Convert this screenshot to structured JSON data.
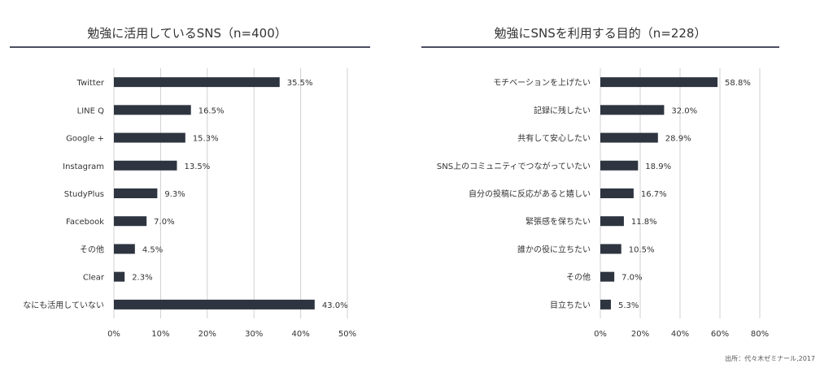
{
  "colors": {
    "bar": "#2e3540",
    "grid": "#d0d0d0",
    "rule": "#4b5060",
    "text": "#333333"
  },
  "source": "出所：代々木ゼミナール,2017",
  "chart_data": [
    {
      "type": "bar",
      "orientation": "horizontal",
      "title": "勉強に活用しているSNS（n=400）",
      "categories": [
        "Twitter",
        "LINE Q",
        "Google +",
        "Instagram",
        "StudyPlus",
        "Facebook",
        "その他",
        "Clear",
        "なにも活用していない"
      ],
      "values": [
        35.5,
        16.5,
        15.3,
        13.5,
        9.3,
        7.0,
        4.5,
        2.3,
        43.0
      ],
      "value_labels": [
        "35.5%",
        "16.5%",
        "15.3%",
        "13.5%",
        "9.3%",
        "7.0%",
        "4.5%",
        "2.3%",
        "43.0%"
      ],
      "xlim": [
        0,
        50
      ],
      "xticks": [
        "0%",
        "10%",
        "20%",
        "30%",
        "40%",
        "50%"
      ],
      "grid": true
    },
    {
      "type": "bar",
      "orientation": "horizontal",
      "title": "勉強にSNSを利用する目的（n=228）",
      "categories": [
        "モチベーションを上げたい",
        "記録に残したい",
        "共有して安心したい",
        "SNS上のコミュニティでつながっていたい",
        "自分の投稿に反応があると嬉しい",
        "緊張感を保ちたい",
        "誰かの役に立ちたい",
        "その他",
        "目立ちたい"
      ],
      "values": [
        58.8,
        32.0,
        28.9,
        18.9,
        16.7,
        11.8,
        10.5,
        7.0,
        5.3
      ],
      "value_labels": [
        "58.8%",
        "32.0%",
        "28.9%",
        "18.9%",
        "16.7%",
        "11.8%",
        "10.5%",
        "7.0%",
        "5.3%"
      ],
      "xlim": [
        0,
        80
      ],
      "xticks": [
        "0%",
        "20%",
        "40%",
        "60%",
        "80%"
      ],
      "grid": true
    }
  ]
}
